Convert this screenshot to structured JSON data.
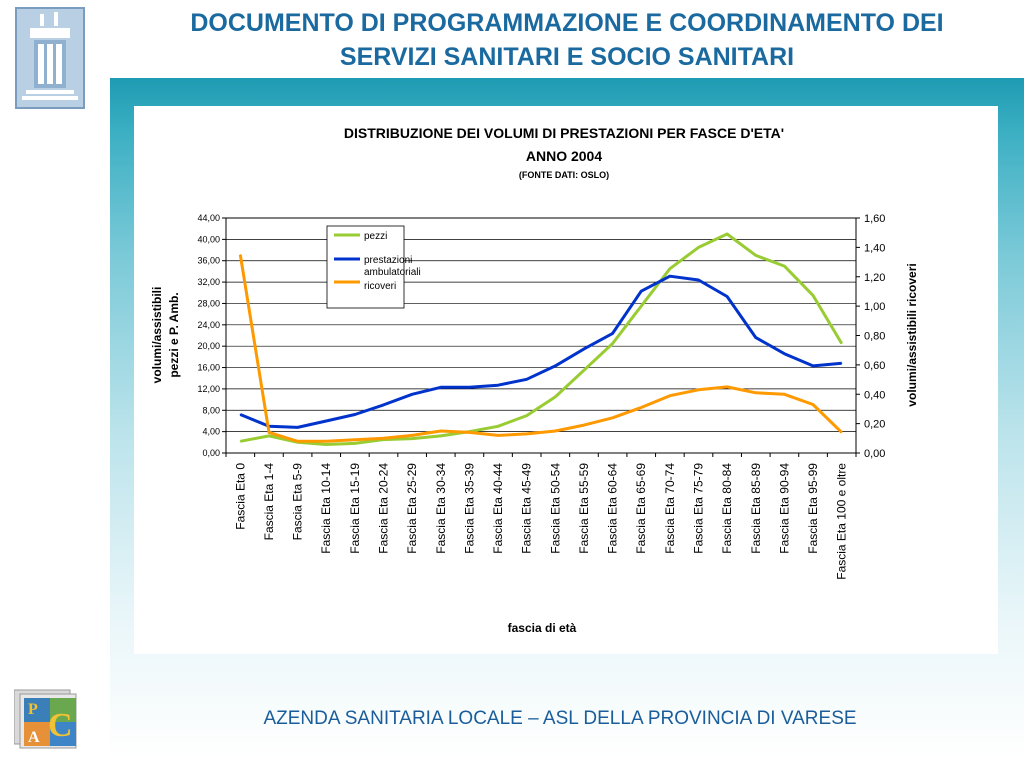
{
  "slide": {
    "title_line1": "DOCUMENTO DI PROGRAMMAZIONE E COORDINAMENTO DEI",
    "title_line2": "SERVIZI SANITARI E SOCIO SANITARI",
    "footer": "AZENDA SANITARIA LOCALE – ASL DELLA PROVINCIA DI VARESE",
    "logo_letters": [
      "P",
      "A",
      "C"
    ]
  },
  "colors": {
    "title": "#1a6aa0",
    "band": "#3fb1c4",
    "pezzi": "#99cc33",
    "prestazioni": "#0033cc",
    "ricoveri": "#ff9900"
  },
  "chart_data": {
    "type": "line",
    "title": "DISTRIBUZIONE DEI VOLUMI DI PRESTAZIONI PER FASCE D'ETA'",
    "subtitle": "ANNO 2004",
    "source_note": "(FONTE DATI: OSLO)",
    "xlabel": "fascia di età",
    "ylabel_left_line1": "volumi/assistibili",
    "ylabel_left_line2": "pezzi e P. Amb.",
    "ylabel_right": "volumi/assistibili ricoveri",
    "ylim_left": [
      0,
      44
    ],
    "ylim_right": [
      0,
      1.6
    ],
    "yticks_left": [
      "0,00",
      "4,00",
      "8,00",
      "12,00",
      "16,00",
      "20,00",
      "24,00",
      "28,00",
      "32,00",
      "36,00",
      "40,00",
      "44,00"
    ],
    "yticks_right": [
      "0,00",
      "0,20",
      "0,40",
      "0,60",
      "0,80",
      "1,00",
      "1,20",
      "1,40",
      "1,60"
    ],
    "grid": true,
    "legend_position": "top-left inside plot",
    "categories": [
      "Fascia Eta 0",
      "Fascia Eta 1-4",
      "Fascia Eta 5-9",
      "Fascia Eta 10-14",
      "Fascia Eta 15-19",
      "Fascia Eta 20-24",
      "Fascia Eta 25-29",
      "Fascia Eta 30-34",
      "Fascia Eta 35-39",
      "Fascia Eta 40-44",
      "Fascia Eta 45-49",
      "Fascia Eta 50-54",
      "Fascia Eta 55-59",
      "Fascia Eta 60-64",
      "Fascia Eta 65-69",
      "Fascia Eta 70-74",
      "Fascia Eta 75-79",
      "Fascia Eta 80-84",
      "Fascia Eta 85-89",
      "Fascia Eta 90-94",
      "Fascia Eta 95-99",
      "Fascia Eta 100 e oltre"
    ],
    "series": [
      {
        "name": "pezzi",
        "axis": "left",
        "color": "#99cc33",
        "values": [
          2.2,
          3.2,
          2.0,
          1.6,
          1.8,
          2.5,
          2.7,
          3.2,
          4.0,
          5.0,
          7.0,
          10.5,
          15.5,
          20.5,
          27.5,
          34.5,
          38.5,
          41.0,
          37.0,
          35.0,
          29.5,
          20.5
        ]
      },
      {
        "name": "prestazioni ambulatoriali",
        "axis": "left",
        "color": "#0033cc",
        "values": [
          7.2,
          5.0,
          4.8,
          6.0,
          7.2,
          9.0,
          11.0,
          12.3,
          12.3,
          12.7,
          13.8,
          16.3,
          19.5,
          22.4,
          30.3,
          33.1,
          32.4,
          29.3,
          21.6,
          18.6,
          16.3,
          16.8
        ]
      },
      {
        "name": "ricoveri",
        "axis": "right",
        "color": "#ff9900",
        "values": [
          1.35,
          0.14,
          0.08,
          0.08,
          0.09,
          0.1,
          0.12,
          0.15,
          0.14,
          0.12,
          0.13,
          0.15,
          0.19,
          0.24,
          0.31,
          0.39,
          0.43,
          0.45,
          0.41,
          0.4,
          0.33,
          0.14
        ]
      }
    ]
  }
}
